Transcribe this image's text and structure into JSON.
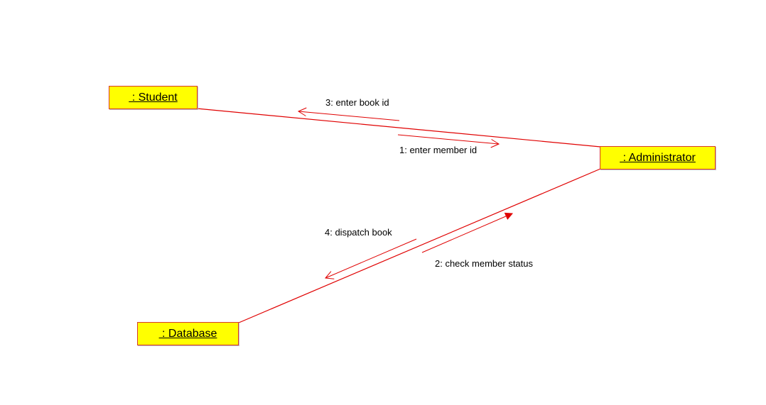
{
  "colors": {
    "background": "#ffffff",
    "object_fill": "#ffff00",
    "object_border": "#d83a2a",
    "link": "#e00000",
    "text": "#000000"
  },
  "objects": {
    "student": " : Student",
    "administrator": " : Administrator",
    "database": " : Database"
  },
  "messages": {
    "m1": "1: enter member id",
    "m2": "2: check member status",
    "m3": "3: enter book id",
    "m4": "4: dispatch book"
  }
}
